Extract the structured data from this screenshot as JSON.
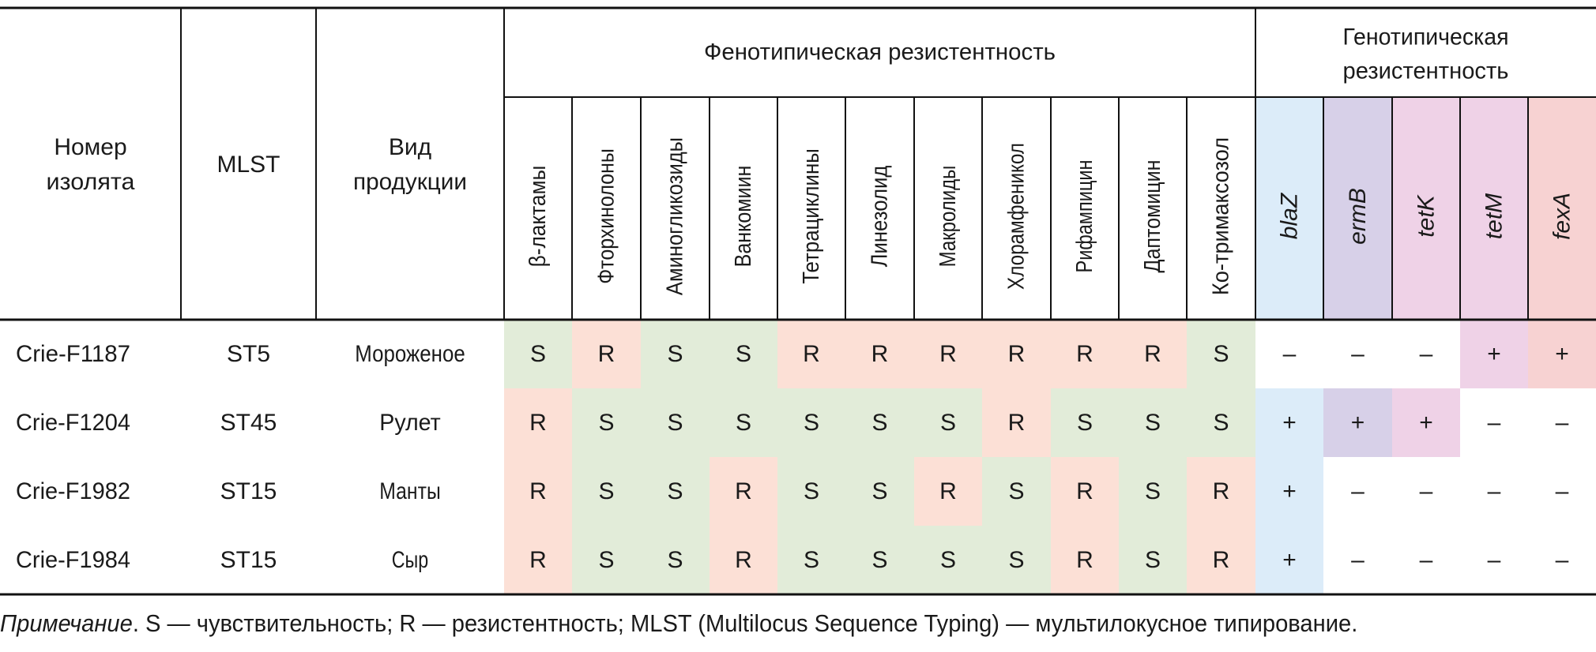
{
  "table": {
    "headers": {
      "isolate": [
        "Номер",
        "изолята"
      ],
      "mlst": [
        "MLST"
      ],
      "product": [
        "Вид",
        "продукции"
      ],
      "phenotypic_group": "Фенотипическая резистентность",
      "genotypic_group": [
        "Генотипическая",
        "резистентность"
      ],
      "phenotypic": [
        "β-лактамы",
        "Фторхинолоны",
        "Аминогликозиды",
        "Ванкомиин",
        "Тетрациклины",
        "Линезолид",
        "Макролиды",
        "Хлорамфеникол",
        "Рифампицин",
        "Даптомицин",
        "Ко-тримаксозол"
      ],
      "genotypic": [
        "blaZ",
        "ermB",
        "tetK",
        "tetM",
        "fexA"
      ]
    },
    "rows": [
      {
        "isolate": "Crie-F1187",
        "mlst": "ST5",
        "product": "Мороженое",
        "phenotypic": [
          "S",
          "R",
          "S",
          "S",
          "R",
          "R",
          "R",
          "R",
          "R",
          "R",
          "S"
        ],
        "genotypic": [
          "–",
          "–",
          "–",
          "+",
          "+"
        ]
      },
      {
        "isolate": "Crie-F1204",
        "mlst": "ST45",
        "product": "Рулет",
        "phenotypic": [
          "R",
          "S",
          "S",
          "S",
          "S",
          "S",
          "S",
          "R",
          "S",
          "S",
          "S"
        ],
        "genotypic": [
          "+",
          "+",
          "+",
          "–",
          "–"
        ]
      },
      {
        "isolate": "Crie-F1982",
        "mlst": "ST15",
        "product": "Манты",
        "phenotypic": [
          "R",
          "S",
          "S",
          "R",
          "S",
          "S",
          "R",
          "S",
          "R",
          "S",
          "R"
        ],
        "genotypic": [
          "+",
          "–",
          "–",
          "–",
          "–"
        ]
      },
      {
        "isolate": "Crie-F1984",
        "mlst": "ST15",
        "product": "Сыр",
        "phenotypic": [
          "R",
          "S",
          "S",
          "R",
          "S",
          "S",
          "S",
          "S",
          "R",
          "S",
          "R"
        ],
        "genotypic": [
          "+",
          "–",
          "–",
          "–",
          "–"
        ]
      }
    ]
  },
  "colors": {
    "sensitive": "#e2ecd9",
    "resistant": "#fce0d6",
    "genes": [
      "#dcecf9",
      "#d7d0e8",
      "#efd2e7",
      "#efd2e7",
      "#f7d2d2"
    ],
    "border": "#111111"
  },
  "note": {
    "label": "Примечание",
    "text": ". S — чувствительность; R — резистентность; MLST (Multilocus Sequence Typing) — мультилокусное типирование."
  }
}
